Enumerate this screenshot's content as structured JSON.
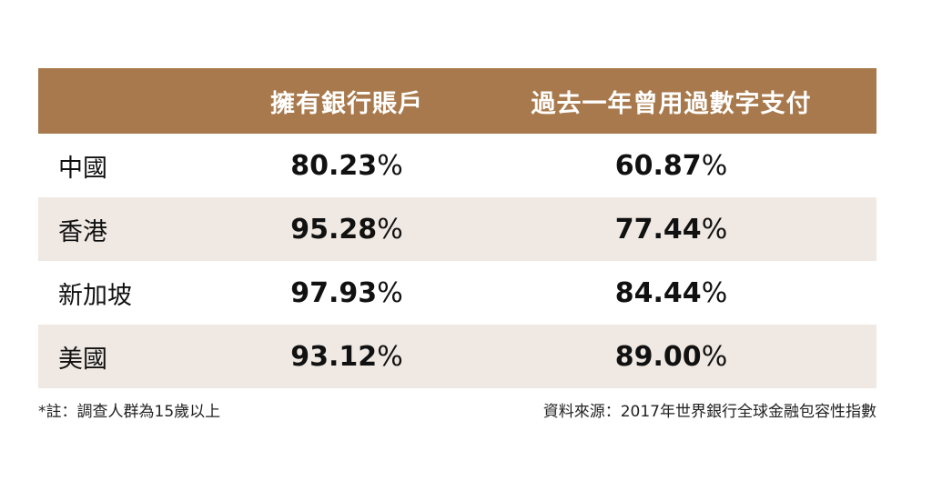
{
  "chart_data": {
    "type": "table",
    "columns": [
      "",
      "擁有銀行賬戶",
      "過去一年曾用過數字支付"
    ],
    "rows": [
      {
        "label": "中國",
        "values": [
          "80.23",
          "60.87"
        ]
      },
      {
        "label": "香港",
        "values": [
          "95.28",
          "77.44"
        ]
      },
      {
        "label": "新加坡",
        "values": [
          "97.93",
          "84.44"
        ]
      },
      {
        "label": "美國",
        "values": [
          "93.12",
          "89.00"
        ]
      }
    ],
    "unit": "%"
  },
  "footer": {
    "note": "*註：調查人群為15歲以上",
    "source": "資料來源：2017年世界銀行全球金融包容性指數"
  },
  "colors": {
    "header_bg": "#a8794c",
    "alt_row_bg": "#f0e9e3"
  }
}
